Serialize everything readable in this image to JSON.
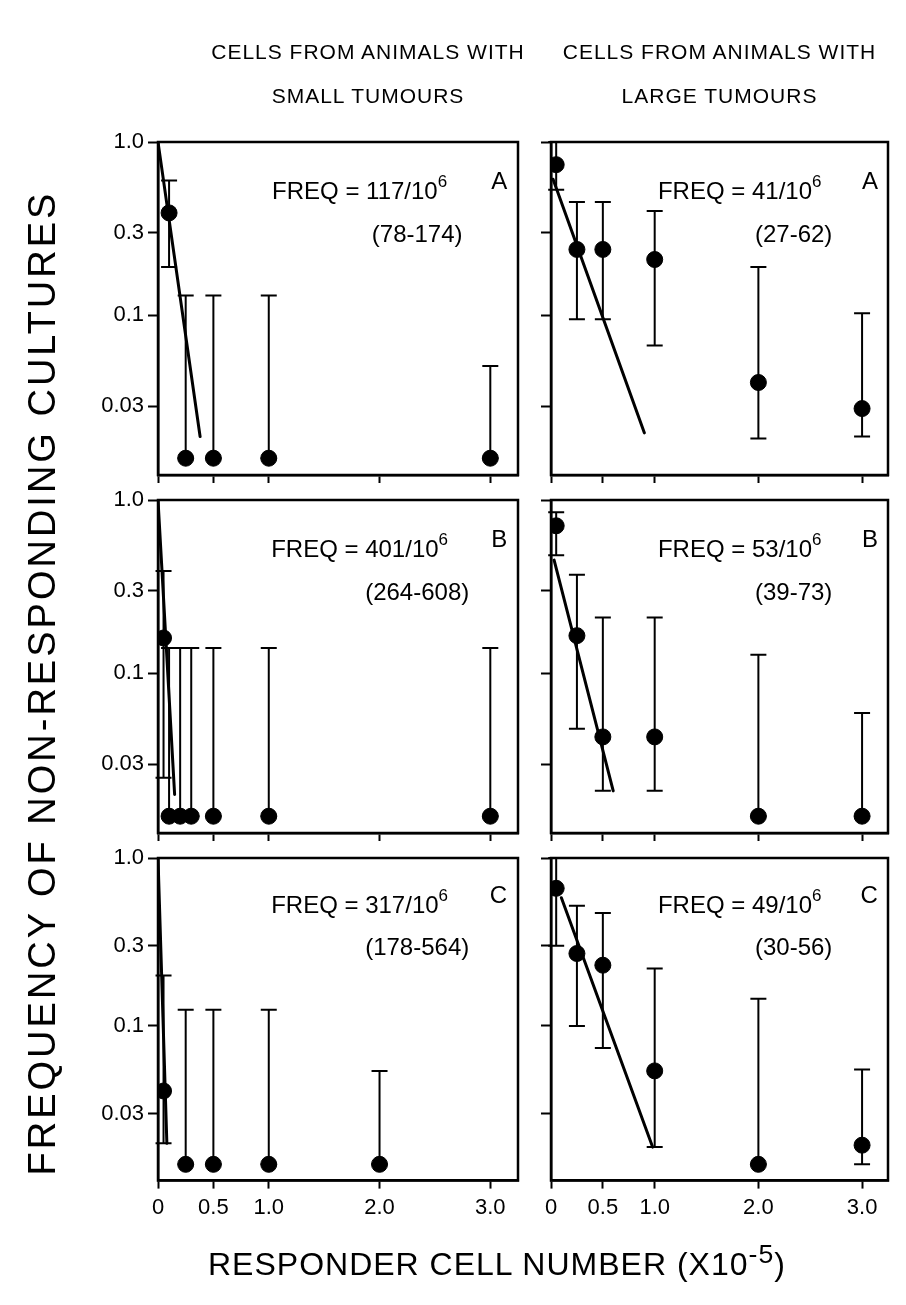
{
  "chart_data": [
    {
      "type": "scatter",
      "title": "CELLS FROM ANIMALS WITH SMALL TUMOURS",
      "log": true,
      "xlim": [
        0,
        3.25
      ],
      "ylim": [
        0.012,
        1.0
      ],
      "xticks": [
        {
          "value": 0,
          "label": null
        },
        {
          "value": 0.5,
          "label": null
        },
        {
          "value": 1,
          "label": null
        },
        {
          "value": 2,
          "label": null
        },
        {
          "value": 3,
          "label": null
        }
      ],
      "yticks": [
        {
          "value": 1,
          "label": "1.0"
        },
        0.3,
        0.1,
        0.03
      ],
      "tick_labels": "y",
      "annotations": [
        "FREQ = 117/10$^{6}$",
        "(78-174)",
        "A"
      ],
      "series": [
        {
          "marker": "circle",
          "color": "#000000",
          "x": [
            0.1,
            0.25,
            0.5,
            1.0,
            3.0
          ],
          "values": [
            0.39,
            0.015,
            0.015,
            0.015,
            0.015
          ],
          "errors": [
            [
              0.19,
              0.6
            ],
            [
              0.015,
              0.13
            ],
            [
              0.015,
              0.13
            ],
            [
              0.015,
              0.13
            ],
            [
              0.015,
              0.051
            ]
          ]
        },
        {
          "type": "line",
          "marker": "none",
          "color": "#000000",
          "x": [
            0,
            0.38
          ],
          "values": [
            1.0,
            0.02
          ]
        }
      ]
    },
    {
      "type": "scatter",
      "title": "CELLS FROM ANIMALS WITH LARGE TUMOURS",
      "log": true,
      "xlim": [
        0,
        3.25
      ],
      "ylim": [
        0.012,
        1.0
      ],
      "xticks": [
        {
          "value": 0,
          "label": null
        },
        {
          "value": 0.5,
          "label": null
        },
        {
          "value": 1,
          "label": null
        },
        {
          "value": 2,
          "label": null
        },
        {
          "value": 3,
          "label": null
        }
      ],
      "yticks": [
        {
          "value": 1,
          "label": null
        },
        {
          "value": 0.3,
          "label": null
        },
        {
          "value": 0.1,
          "label": null
        },
        {
          "value": 0.03,
          "label": null
        }
      ],
      "tick_labels": false,
      "annotations": [
        "FREQ = 41/10$^{6}$",
        "(27-62)",
        "A"
      ],
      "series": [
        {
          "marker": "circle",
          "color": "#000000",
          "x": [
            0.05,
            0.25,
            0.5,
            1.0,
            2.0,
            3.0
          ],
          "values": [
            0.74,
            0.24,
            0.24,
            0.21,
            0.041,
            0.029
          ],
          "errors": [
            [
              0.53,
              1.0
            ],
            [
              0.095,
              0.45
            ],
            [
              0.095,
              0.45
            ],
            [
              0.067,
              0.4
            ],
            [
              0.0195,
              0.19
            ],
            [
              0.02,
              0.103
            ]
          ]
        },
        {
          "type": "line",
          "marker": "none",
          "color": "#000000",
          "x": [
            0.02,
            0.9
          ],
          "values": [
            0.61,
            0.021
          ]
        }
      ]
    },
    {
      "type": "scatter",
      "ylabel": "FREQUENCY OF NON-RESPONDING CULTURES",
      "log": true,
      "xlim": [
        0,
        3.25
      ],
      "ylim": [
        0.012,
        1.0
      ],
      "xticks": [
        {
          "value": 0,
          "label": null
        },
        {
          "value": 0.5,
          "label": null
        },
        {
          "value": 1,
          "label": null
        },
        {
          "value": 2,
          "label": null
        },
        {
          "value": 3,
          "label": null
        }
      ],
      "yticks": [
        {
          "value": 1,
          "label": "1.0"
        },
        0.3,
        0.1,
        0.03
      ],
      "tick_labels": "y",
      "annotations": [
        "FREQ = 401/10$^{6}$",
        "(264-608)",
        "B"
      ],
      "series": [
        {
          "marker": "circle",
          "color": "#000000",
          "x": [
            0.05,
            0.1,
            0.2,
            0.3,
            0.5,
            1.0,
            3.0
          ],
          "values": [
            0.16,
            0.015,
            0.015,
            0.015,
            0.015,
            0.015,
            0.015
          ],
          "errors": [
            [
              0.025,
              0.39
            ],
            [
              0.015,
              0.14
            ],
            [
              0.015,
              0.14
            ],
            [
              0.015,
              0.14
            ],
            [
              0.015,
              0.14
            ],
            [
              0.015,
              0.14
            ],
            [
              0.015,
              0.14
            ]
          ]
        },
        {
          "type": "line",
          "marker": "none",
          "color": "#000000",
          "x": [
            0,
            0.15
          ],
          "values": [
            1.0,
            0.02
          ]
        }
      ]
    },
    {
      "type": "scatter",
      "log": true,
      "xlim": [
        0,
        3.25
      ],
      "ylim": [
        0.012,
        1.0
      ],
      "xticks": [
        {
          "value": 0,
          "label": null
        },
        {
          "value": 0.5,
          "label": null
        },
        {
          "value": 1,
          "label": null
        },
        {
          "value": 2,
          "label": null
        },
        {
          "value": 3,
          "label": null
        }
      ],
      "yticks": [
        {
          "value": 1,
          "label": null
        },
        {
          "value": 0.3,
          "label": null
        },
        {
          "value": 0.1,
          "label": null
        },
        {
          "value": 0.03,
          "label": null
        }
      ],
      "tick_labels": false,
      "annotations": [
        "FREQ = 53/10$^{6}$",
        "(39-73)",
        "B"
      ],
      "series": [
        {
          "marker": "circle",
          "color": "#000000",
          "x": [
            0.05,
            0.25,
            0.5,
            1.0,
            2.0,
            3.0
          ],
          "values": [
            0.71,
            0.165,
            0.043,
            0.043,
            0.015,
            0.015
          ],
          "errors": [
            [
              0.48,
              0.85
            ],
            [
              0.048,
              0.37
            ],
            [
              0.021,
              0.21
            ],
            [
              0.021,
              0.21
            ],
            [
              0.015,
              0.128
            ],
            [
              0.015,
              0.059
            ]
          ]
        },
        {
          "type": "line",
          "marker": "none",
          "color": "#000000",
          "x": [
            0.03,
            0.6
          ],
          "values": [
            0.45,
            0.021
          ]
        }
      ]
    },
    {
      "type": "scatter",
      "xlabel": "RESPONDER CELL NUMBER (X10$^{-5}$)",
      "log": true,
      "xlim": [
        0,
        3.25
      ],
      "ylim": [
        0.012,
        1.0
      ],
      "xticks": [
        {
          "value": 0,
          "label": "0"
        },
        {
          "value": 0.5,
          "label": "0.5"
        },
        {
          "value": 1,
          "label": "1.0"
        },
        {
          "value": 2,
          "label": "2.0"
        },
        {
          "value": 3,
          "label": "3.0"
        }
      ],
      "yticks": [
        {
          "value": 1,
          "label": "1.0"
        },
        {
          "value": 0.3,
          "label": "0.3"
        },
        {
          "value": 0.1,
          "label": "0.1"
        },
        {
          "value": 0.03,
          "label": "0.03"
        }
      ],
      "annotations": [
        "FREQ = 317/10$^{6}$",
        "(178-564)",
        "C"
      ],
      "series": [
        {
          "marker": "circle",
          "color": "#000000",
          "x": [
            0.05,
            0.25,
            0.5,
            1.0,
            2.0
          ],
          "values": [
            0.041,
            0.015,
            0.015,
            0.015,
            0.015
          ],
          "errors": [
            [
              0.02,
              0.2
            ],
            [
              0.015,
              0.125
            ],
            [
              0.015,
              0.125
            ],
            [
              0.015,
              0.125
            ],
            [
              0.015,
              0.054
            ]
          ]
        },
        {
          "type": "line",
          "marker": "none",
          "color": "#000000",
          "x": [
            0,
            0.08
          ],
          "values": [
            1.0,
            0.02
          ]
        }
      ]
    },
    {
      "type": "scatter",
      "log": true,
      "xlim": [
        0,
        3.25
      ],
      "ylim": [
        0.012,
        1.0
      ],
      "xticks": [
        0,
        0.5,
        {
          "value": 1,
          "label": "1.0"
        },
        {
          "value": 2,
          "label": "2.0"
        },
        {
          "value": 3,
          "label": "3.0"
        }
      ],
      "yticks": [
        {
          "value": 1,
          "label": null
        },
        {
          "value": 0.3,
          "label": null
        },
        {
          "value": 0.1,
          "label": null
        },
        {
          "value": 0.03,
          "label": null
        }
      ],
      "tick_labels": "x",
      "annotations": [
        "FREQ = 49/10$^{6}$",
        "(30-56)",
        "C"
      ],
      "series": [
        {
          "marker": "circle",
          "color": "#000000",
          "x": [
            0.05,
            0.25,
            0.5,
            1.0,
            2.0,
            3.0
          ],
          "values": [
            0.66,
            0.27,
            0.23,
            0.054,
            0.015,
            0.0195
          ],
          "errors": [
            [
              0.3,
              1.0
            ],
            [
              0.1,
              0.52
            ],
            [
              0.074,
              0.47
            ],
            [
              0.019,
              0.22
            ],
            [
              0.015,
              0.145
            ],
            [
              0.015,
              0.055
            ]
          ]
        },
        {
          "type": "line",
          "marker": "none",
          "color": "#000000",
          "x": [
            0.1,
            0.98
          ],
          "values": [
            0.58,
            0.019
          ]
        }
      ]
    }
  ]
}
